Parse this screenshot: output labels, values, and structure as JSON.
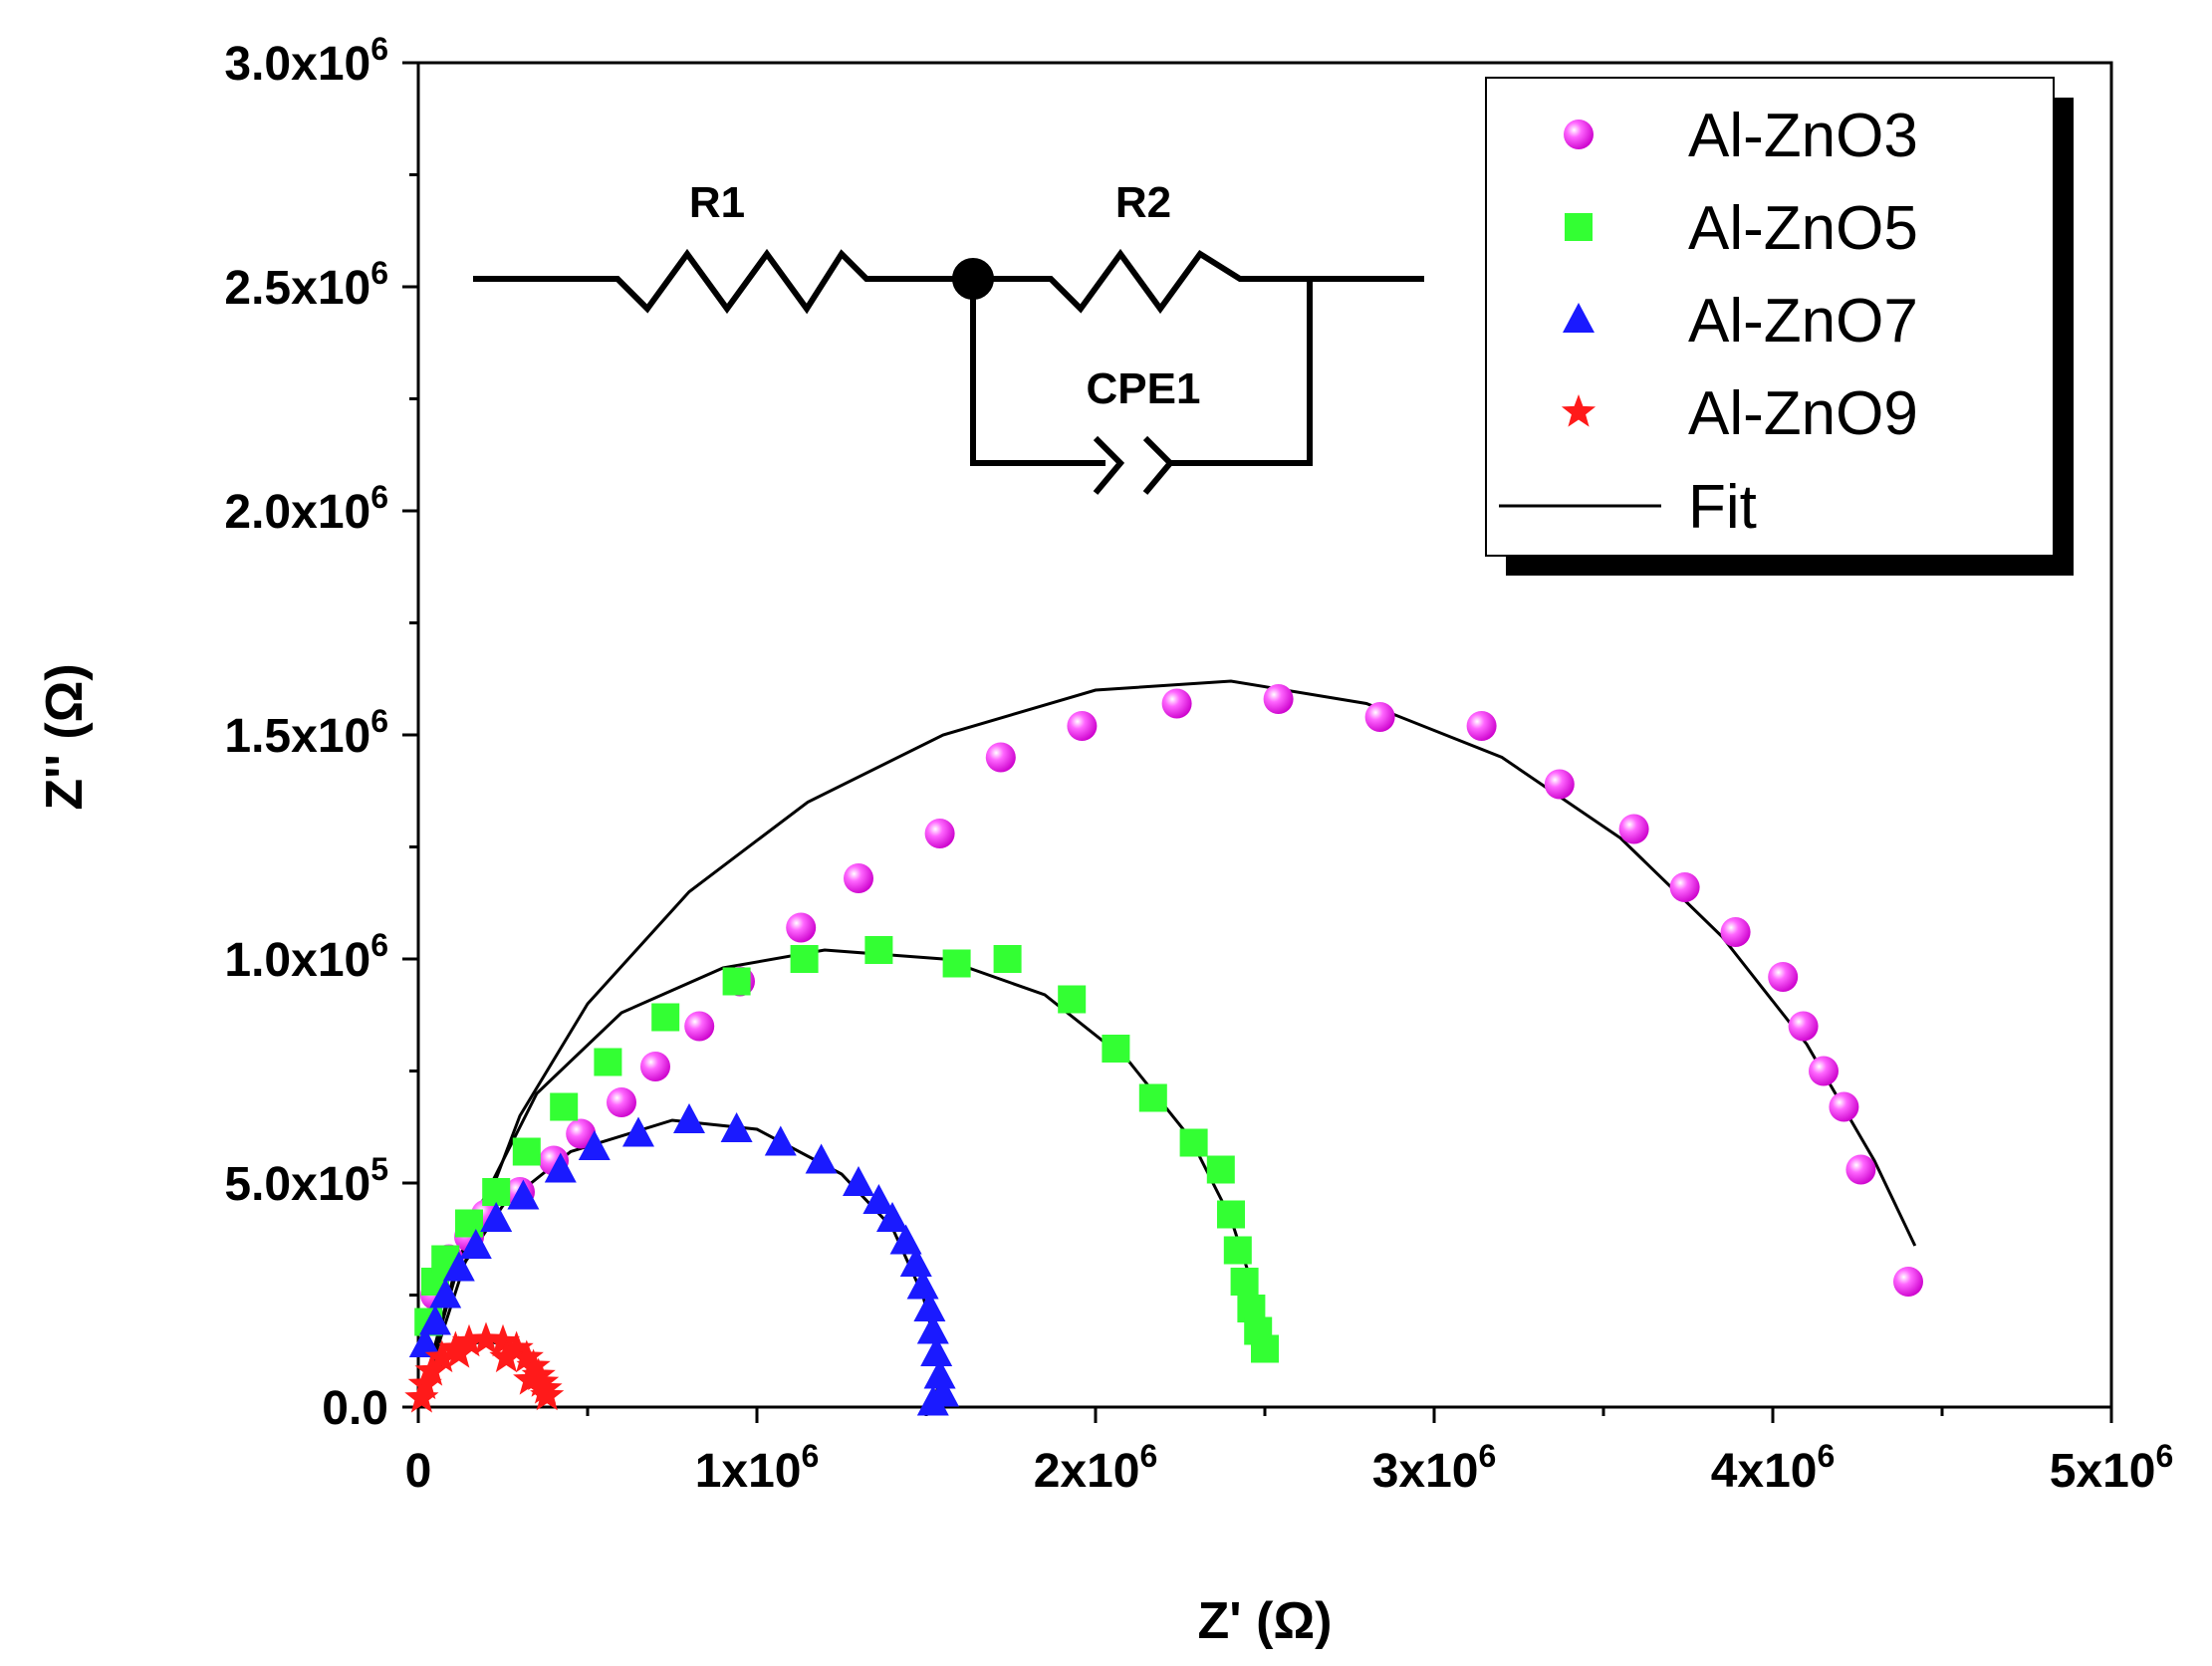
{
  "chart_data": {
    "type": "scatter",
    "title": "",
    "xlabel": "Z' (Ω)",
    "ylabel": "Z'' (Ω)",
    "xlim": [
      0,
      5000000
    ],
    "ylim": [
      0,
      3000000
    ],
    "x_ticks": [
      {
        "value": 0,
        "base": "0",
        "exp": ""
      },
      {
        "value": 1000000,
        "base": "1x10",
        "exp": "6"
      },
      {
        "value": 2000000,
        "base": "2x10",
        "exp": "6"
      },
      {
        "value": 3000000,
        "base": "3x10",
        "exp": "6"
      },
      {
        "value": 4000000,
        "base": "4x10",
        "exp": "6"
      },
      {
        "value": 5000000,
        "base": "5x10",
        "exp": "6"
      }
    ],
    "y_ticks": [
      {
        "value": 0,
        "base": "0.0",
        "exp": ""
      },
      {
        "value": 500000,
        "base": "5.0x10",
        "exp": "5"
      },
      {
        "value": 1000000,
        "base": "1.0x10",
        "exp": "6"
      },
      {
        "value": 1500000,
        "base": "1.5x10",
        "exp": "6"
      },
      {
        "value": 2000000,
        "base": "2.0x10",
        "exp": "6"
      },
      {
        "value": 2500000,
        "base": "2.5x10",
        "exp": "6"
      },
      {
        "value": 3000000,
        "base": "3.0x10",
        "exp": "6"
      }
    ],
    "legend_position": "top-right",
    "series": [
      {
        "name": "Al-ZnO3",
        "marker": "sphere",
        "color": "#ff33ff",
        "points": [
          [
            50000,
            250000
          ],
          [
            90000,
            330000
          ],
          [
            150000,
            380000
          ],
          [
            200000,
            430000
          ],
          [
            300000,
            480000
          ],
          [
            400000,
            550000
          ],
          [
            480000,
            610000
          ],
          [
            600000,
            680000
          ],
          [
            700000,
            760000
          ],
          [
            830000,
            850000
          ],
          [
            950000,
            950000
          ],
          [
            1130000,
            1070000
          ],
          [
            1300000,
            1180000
          ],
          [
            1540000,
            1280000
          ],
          [
            1720000,
            1450000
          ],
          [
            1960000,
            1520000
          ],
          [
            2240000,
            1570000
          ],
          [
            2540000,
            1580000
          ],
          [
            2840000,
            1540000
          ],
          [
            3140000,
            1520000
          ],
          [
            3370000,
            1390000
          ],
          [
            3590000,
            1290000
          ],
          [
            3740000,
            1160000
          ],
          [
            3890000,
            1060000
          ],
          [
            4030000,
            960000
          ],
          [
            4090000,
            850000
          ],
          [
            4150000,
            750000
          ],
          [
            4210000,
            670000
          ],
          [
            4260000,
            530000
          ],
          [
            4400000,
            280000
          ]
        ]
      },
      {
        "name": "Al-ZnO5",
        "marker": "square",
        "color": "#33ff33",
        "points": [
          [
            30000,
            190000
          ],
          [
            50000,
            280000
          ],
          [
            80000,
            330000
          ],
          [
            150000,
            410000
          ],
          [
            230000,
            480000
          ],
          [
            320000,
            570000
          ],
          [
            430000,
            670000
          ],
          [
            560000,
            770000
          ],
          [
            730000,
            870000
          ],
          [
            940000,
            950000
          ],
          [
            1140000,
            1000000
          ],
          [
            1360000,
            1020000
          ],
          [
            1590000,
            990000
          ],
          [
            1740000,
            1000000
          ],
          [
            1930000,
            910000
          ],
          [
            2060000,
            800000
          ],
          [
            2170000,
            690000
          ],
          [
            2290000,
            590000
          ],
          [
            2370000,
            530000
          ],
          [
            2400000,
            430000
          ],
          [
            2420000,
            350000
          ],
          [
            2440000,
            280000
          ],
          [
            2460000,
            220000
          ],
          [
            2480000,
            170000
          ],
          [
            2500000,
            130000
          ]
        ]
      },
      {
        "name": "Al-ZnO7",
        "marker": "triangle",
        "color": "#1a1aff",
        "points": [
          [
            20000,
            140000
          ],
          [
            50000,
            190000
          ],
          [
            80000,
            250000
          ],
          [
            120000,
            310000
          ],
          [
            170000,
            360000
          ],
          [
            230000,
            420000
          ],
          [
            310000,
            470000
          ],
          [
            420000,
            530000
          ],
          [
            520000,
            580000
          ],
          [
            650000,
            610000
          ],
          [
            800000,
            640000
          ],
          [
            940000,
            620000
          ],
          [
            1070000,
            590000
          ],
          [
            1190000,
            550000
          ],
          [
            1300000,
            500000
          ],
          [
            1360000,
            460000
          ],
          [
            1400000,
            420000
          ],
          [
            1440000,
            370000
          ],
          [
            1470000,
            320000
          ],
          [
            1490000,
            270000
          ],
          [
            1510000,
            220000
          ],
          [
            1520000,
            170000
          ],
          [
            1530000,
            120000
          ],
          [
            1540000,
            70000
          ],
          [
            1550000,
            30000
          ],
          [
            1520000,
            10000
          ]
        ]
      },
      {
        "name": "Al-ZnO9",
        "marker": "star",
        "color": "#ff1a1a",
        "points": [
          [
            10000,
            20000
          ],
          [
            20000,
            50000
          ],
          [
            40000,
            80000
          ],
          [
            70000,
            110000
          ],
          [
            110000,
            130000
          ],
          [
            150000,
            145000
          ],
          [
            200000,
            150000
          ],
          [
            250000,
            145000
          ],
          [
            290000,
            130000
          ],
          [
            320000,
            110000
          ],
          [
            340000,
            90000
          ],
          [
            355000,
            70000
          ],
          [
            365000,
            55000
          ],
          [
            375000,
            40000
          ],
          [
            380000,
            25000
          ],
          [
            330000,
            60000
          ],
          [
            260000,
            110000
          ],
          [
            120000,
            120000
          ]
        ]
      }
    ],
    "fits": [
      {
        "series": "Al-ZnO3",
        "points": [
          [
            0,
            0
          ],
          [
            150000,
            350000
          ],
          [
            300000,
            650000
          ],
          [
            500000,
            900000
          ],
          [
            800000,
            1150000
          ],
          [
            1150000,
            1350000
          ],
          [
            1550000,
            1500000
          ],
          [
            2000000,
            1600000
          ],
          [
            2400000,
            1620000
          ],
          [
            2800000,
            1570000
          ],
          [
            3200000,
            1450000
          ],
          [
            3550000,
            1270000
          ],
          [
            3850000,
            1050000
          ],
          [
            4100000,
            810000
          ],
          [
            4300000,
            550000
          ],
          [
            4420000,
            360000
          ]
        ]
      },
      {
        "series": "Al-ZnO5",
        "points": [
          [
            0,
            0
          ],
          [
            150000,
            400000
          ],
          [
            350000,
            700000
          ],
          [
            600000,
            880000
          ],
          [
            900000,
            980000
          ],
          [
            1200000,
            1020000
          ],
          [
            1550000,
            1000000
          ],
          [
            1850000,
            920000
          ],
          [
            2100000,
            770000
          ],
          [
            2280000,
            600000
          ],
          [
            2400000,
            420000
          ],
          [
            2460000,
            280000
          ],
          [
            2500000,
            160000
          ]
        ]
      },
      {
        "series": "Al-ZnO7",
        "points": [
          [
            0,
            0
          ],
          [
            100000,
            280000
          ],
          [
            250000,
            450000
          ],
          [
            450000,
            570000
          ],
          [
            750000,
            640000
          ],
          [
            1000000,
            620000
          ],
          [
            1250000,
            520000
          ],
          [
            1400000,
            400000
          ],
          [
            1490000,
            250000
          ],
          [
            1530000,
            130000
          ],
          [
            1540000,
            50000
          ],
          [
            1520000,
            20000
          ]
        ]
      },
      {
        "series": "Al-ZnO9",
        "points": [
          [
            0,
            0
          ],
          [
            60000,
            90000
          ],
          [
            120000,
            130000
          ],
          [
            200000,
            150000
          ],
          [
            280000,
            130000
          ],
          [
            340000,
            90000
          ],
          [
            370000,
            40000
          ],
          [
            385000,
            10000
          ]
        ]
      }
    ]
  },
  "legend": {
    "items": [
      "Al-ZnO3",
      "Al-ZnO5",
      "Al-ZnO7",
      "Al-ZnO9"
    ],
    "fit_label": "Fit"
  },
  "circuit": {
    "r1_label": "R1",
    "r2_label": "R2",
    "cpe_label": "CPE1"
  }
}
